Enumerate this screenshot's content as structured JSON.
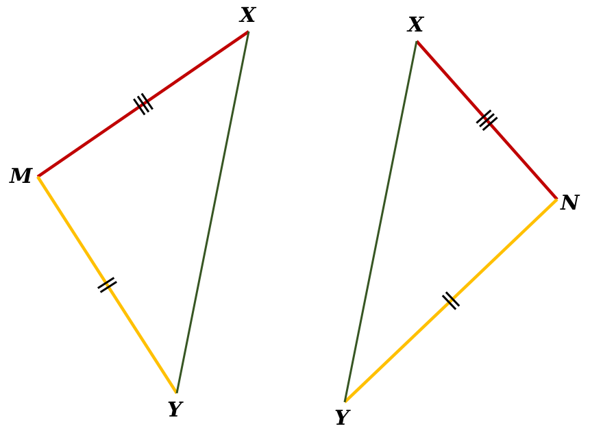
{
  "colors": {
    "congruent_long": "#C00000",
    "congruent_short": "#FFC000",
    "shared_side": "#375623",
    "ticks": "#000000"
  },
  "left_triangle": {
    "labels": {
      "top": "X",
      "left": "M",
      "bottom": "Y"
    },
    "tick_marks": {
      "MX": 3,
      "MY": 2
    }
  },
  "right_triangle": {
    "labels": {
      "top": "X",
      "right": "N",
      "bottom": "Y"
    },
    "tick_marks": {
      "XN": 3,
      "NY": 2
    }
  }
}
